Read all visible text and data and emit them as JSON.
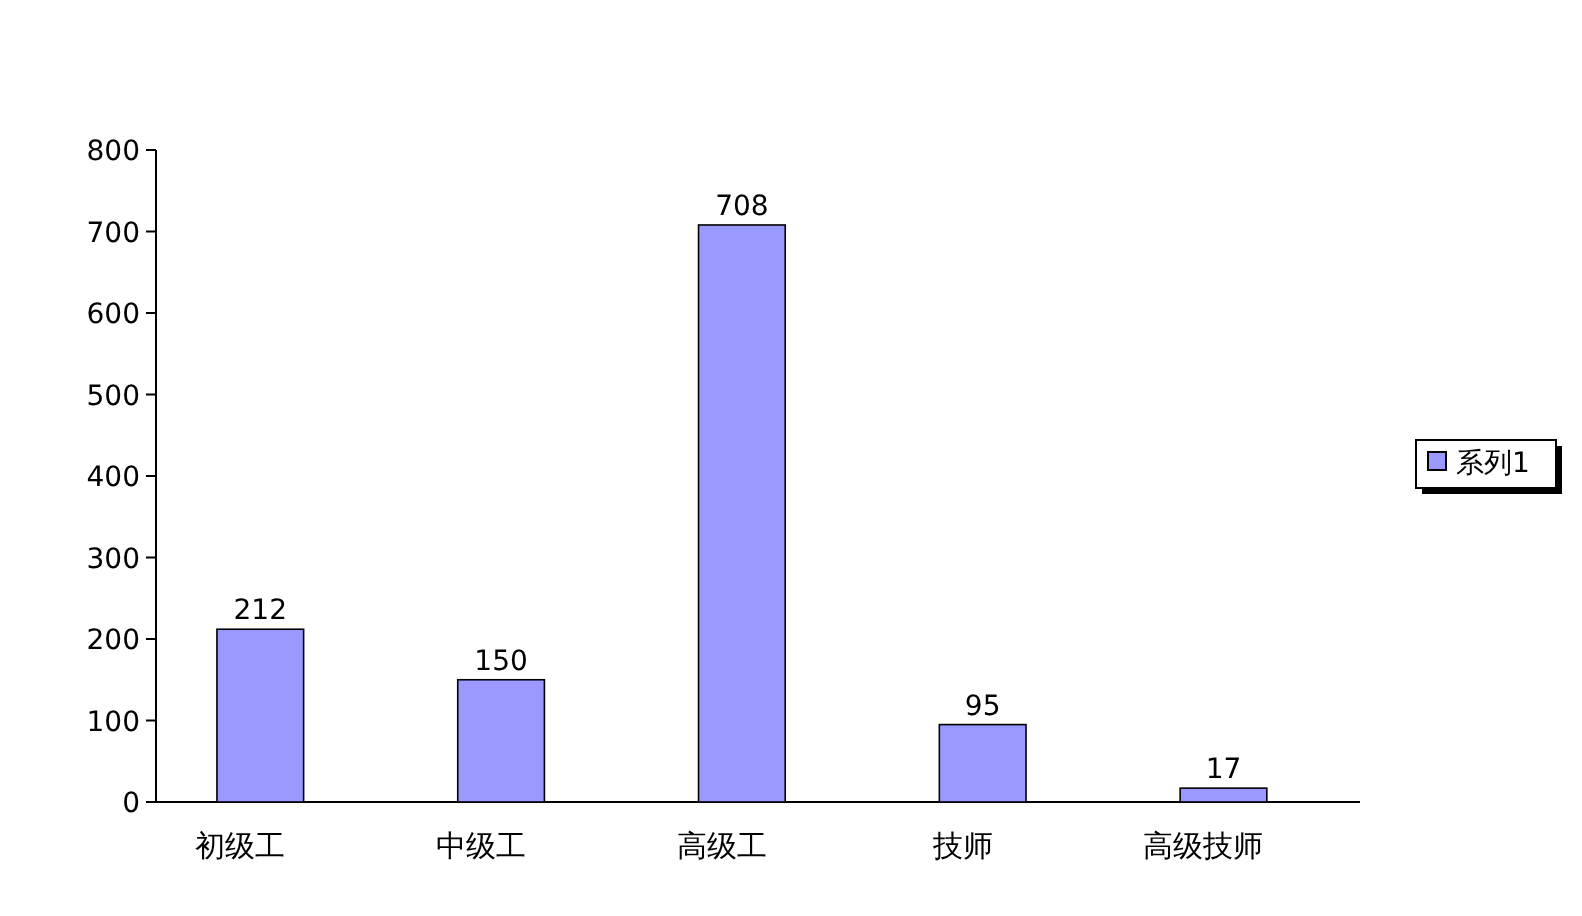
{
  "chart_data": {
    "type": "bar",
    "categories": [
      "初级工",
      "中级工",
      "高级工",
      "技师",
      "高级技师"
    ],
    "series": [
      {
        "name": "系列1",
        "color": "#9999ff",
        "values": [
          212,
          150,
          708,
          95,
          17
        ]
      }
    ],
    "ylim": [
      0,
      800
    ],
    "yticks": [
      0,
      100,
      200,
      300,
      400,
      500,
      600,
      700,
      800
    ],
    "data_labels": true,
    "legend": "right"
  }
}
